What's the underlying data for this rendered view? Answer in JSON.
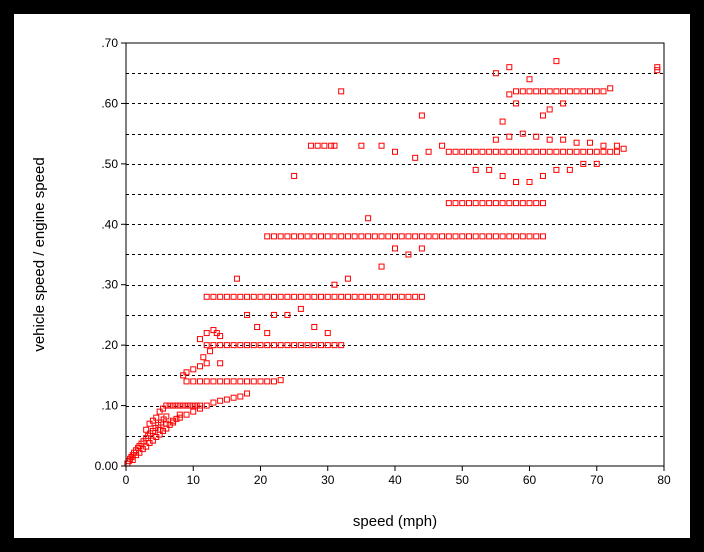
{
  "chart_data": {
    "type": "scatter",
    "title": "",
    "xlabel": "speed (mph)",
    "ylabel": "vehicle speed / engine speed",
    "xlim": [
      0,
      80
    ],
    "ylim": [
      0,
      0.7
    ],
    "x_ticks": [
      0,
      10,
      20,
      30,
      40,
      50,
      60,
      70,
      80
    ],
    "x_tick_labels": [
      "0",
      "10",
      "20",
      "30",
      "40",
      "50",
      "60",
      "70",
      "80"
    ],
    "y_ticks": [
      0,
      0.1,
      0.2,
      0.3,
      0.4,
      0.5,
      0.6,
      0.7
    ],
    "y_tick_labels": [
      "0.00",
      ".10",
      ".20",
      ".30",
      ".40",
      ".50",
      ".60",
      ".70"
    ],
    "grid": "horizontal dashed lines every 0.05",
    "legend": "none",
    "marker": "hollow square",
    "marker_color": "#ff0000",
    "series": [
      {
        "x": [
          0.2,
          0.4,
          0.6,
          0.8,
          1.0,
          1.2,
          1.5,
          1.8,
          2.0,
          2.3,
          2.6,
          3.0,
          3.3,
          3.6,
          4.0,
          4.4,
          4.8,
          5.2,
          5.6,
          6.0,
          1.0,
          1.5,
          2.0,
          2.5,
          3.0,
          3.5,
          4.0,
          4.5,
          5.0,
          5.5,
          6.0,
          6.5,
          7.0,
          7.5,
          8.0,
          3.0,
          3.5,
          4.0,
          4.5,
          5.0,
          5.5,
          6.0,
          6.5,
          7.0,
          7.5,
          8.0,
          8.5,
          9.0,
          9.5,
          10.0,
          10.5,
          11.0,
          5.0,
          6.0,
          7.0,
          8.0,
          9.0,
          10.0,
          11.0,
          12.0,
          13.0,
          14.0,
          15.0,
          16.0,
          17.0,
          18.0,
          9.0,
          10.0,
          11.0,
          12.0,
          13.0,
          14.0,
          15.0,
          16.0,
          17.0,
          18.0,
          19.0,
          20.0,
          21.0,
          22.0,
          23.0,
          8.5,
          9.0,
          10.0,
          11.0,
          12.0,
          14.0,
          12.0,
          13.0,
          14.0,
          15.0,
          16.0,
          17.0,
          18.0,
          19.0,
          20.0,
          21.0,
          22.0,
          23.0,
          24.0,
          25.0,
          26.0,
          27.0,
          28.0,
          29.0,
          30.0,
          31.0,
          32.0,
          11.0,
          12.0,
          13.0,
          14.0,
          12.0,
          13.0,
          14.0,
          15.0,
          16.0,
          17.0,
          18.0,
          19.0,
          20.0,
          21.0,
          22.0,
          23.0,
          24.0,
          25.0,
          26.0,
          27.0,
          28.0,
          29.0,
          30.0,
          31.0,
          32.0,
          33.0,
          34.0,
          35.0,
          36.0,
          37.0,
          38.0,
          39.0,
          40.0,
          41.0,
          42.0,
          43.0,
          44.0,
          21.0,
          22.0,
          23.0,
          24.0,
          25.0,
          26.0,
          27.0,
          28.0,
          29.0,
          30.0,
          31.0,
          32.0,
          33.0,
          34.0,
          35.0,
          36.0,
          37.0,
          38.0,
          39.0,
          40.0,
          41.0,
          42.0,
          43.0,
          44.0,
          45.0,
          46.0,
          47.0,
          48.0,
          49.0,
          50.0,
          51.0,
          52.0,
          53.0,
          54.0,
          55.0,
          56.0,
          57.0,
          58.0,
          59.0,
          60.0,
          61.0,
          62.0,
          48.0,
          49.0,
          50.0,
          51.0,
          52.0,
          53.0,
          54.0,
          55.0,
          56.0,
          57.0,
          58.0,
          59.0,
          60.0,
          61.0,
          62.0,
          48.0,
          49.0,
          50.0,
          51.0,
          52.0,
          53.0,
          54.0,
          55.0,
          56.0,
          57.0,
          58.0,
          59.0,
          60.0,
          61.0,
          62.0,
          63.0,
          64.0,
          65.0,
          66.0,
          67.0,
          68.0,
          69.0,
          70.0,
          71.0,
          72.0,
          73.0,
          74.0,
          52.0,
          54.0,
          56.0,
          58.0,
          60.0,
          62.0,
          64.0,
          66.0,
          68.0,
          70.0,
          55.0,
          57.0,
          59.0,
          61.0,
          63.0,
          65.0,
          67.0,
          69.0,
          71.0,
          73.0,
          57.0,
          58.0,
          59.0,
          60.0,
          61.0,
          62.0,
          63.0,
          64.0,
          65.0,
          66.0,
          67.0,
          68.0,
          69.0,
          70.0,
          71.0,
          72.0,
          27.5,
          28.5,
          29.5,
          30.5,
          31.0,
          11.5,
          12.5,
          13.5,
          16.5,
          18.0,
          19.5,
          21.0,
          22.0,
          24.0,
          26.0,
          28.0,
          30.0,
          31.0,
          33.0,
          36.0,
          38.0,
          40.0,
          42.0,
          44.0,
          25.0,
          32.0,
          35.0,
          38.0,
          40.0,
          43.0,
          45.0,
          47.0,
          44.0,
          55.0,
          60.0,
          58.0,
          64.0,
          56.0,
          57.0,
          79.0,
          79.0,
          62.0,
          63.0,
          65.0
        ],
        "y": [
          0.004,
          0.008,
          0.012,
          0.015,
          0.018,
          0.022,
          0.026,
          0.03,
          0.033,
          0.037,
          0.041,
          0.046,
          0.05,
          0.054,
          0.058,
          0.063,
          0.068,
          0.072,
          0.077,
          0.082,
          0.01,
          0.018,
          0.022,
          0.028,
          0.032,
          0.038,
          0.042,
          0.048,
          0.052,
          0.058,
          0.062,
          0.068,
          0.072,
          0.078,
          0.085,
          0.06,
          0.07,
          0.075,
          0.08,
          0.09,
          0.095,
          0.1,
          0.1,
          0.1,
          0.1,
          0.1,
          0.1,
          0.1,
          0.1,
          0.1,
          0.1,
          0.1,
          0.06,
          0.07,
          0.075,
          0.08,
          0.085,
          0.09,
          0.095,
          0.1,
          0.105,
          0.108,
          0.11,
          0.113,
          0.115,
          0.12,
          0.14,
          0.14,
          0.14,
          0.14,
          0.14,
          0.14,
          0.14,
          0.14,
          0.14,
          0.14,
          0.14,
          0.14,
          0.14,
          0.14,
          0.142,
          0.15,
          0.155,
          0.16,
          0.165,
          0.17,
          0.17,
          0.2,
          0.2,
          0.2,
          0.2,
          0.2,
          0.2,
          0.2,
          0.2,
          0.2,
          0.2,
          0.2,
          0.2,
          0.2,
          0.2,
          0.2,
          0.2,
          0.2,
          0.2,
          0.2,
          0.2,
          0.2,
          0.21,
          0.22,
          0.225,
          0.215,
          0.28,
          0.28,
          0.28,
          0.28,
          0.28,
          0.28,
          0.28,
          0.28,
          0.28,
          0.28,
          0.28,
          0.28,
          0.28,
          0.28,
          0.28,
          0.28,
          0.28,
          0.28,
          0.28,
          0.28,
          0.28,
          0.28,
          0.28,
          0.28,
          0.28,
          0.28,
          0.28,
          0.28,
          0.28,
          0.28,
          0.28,
          0.28,
          0.28,
          0.38,
          0.38,
          0.38,
          0.38,
          0.38,
          0.38,
          0.38,
          0.38,
          0.38,
          0.38,
          0.38,
          0.38,
          0.38,
          0.38,
          0.38,
          0.38,
          0.38,
          0.38,
          0.38,
          0.38,
          0.38,
          0.38,
          0.38,
          0.38,
          0.38,
          0.38,
          0.38,
          0.38,
          0.38,
          0.38,
          0.38,
          0.38,
          0.38,
          0.38,
          0.38,
          0.38,
          0.38,
          0.38,
          0.38,
          0.38,
          0.38,
          0.38,
          0.435,
          0.435,
          0.435,
          0.435,
          0.435,
          0.435,
          0.435,
          0.435,
          0.435,
          0.435,
          0.435,
          0.435,
          0.435,
          0.435,
          0.435,
          0.52,
          0.52,
          0.52,
          0.52,
          0.52,
          0.52,
          0.52,
          0.52,
          0.52,
          0.52,
          0.52,
          0.52,
          0.52,
          0.52,
          0.52,
          0.52,
          0.52,
          0.52,
          0.52,
          0.52,
          0.52,
          0.52,
          0.52,
          0.52,
          0.52,
          0.52,
          0.525,
          0.49,
          0.49,
          0.48,
          0.47,
          0.47,
          0.48,
          0.49,
          0.49,
          0.5,
          0.5,
          0.54,
          0.545,
          0.55,
          0.545,
          0.54,
          0.54,
          0.535,
          0.535,
          0.53,
          0.53,
          0.615,
          0.62,
          0.62,
          0.62,
          0.62,
          0.62,
          0.62,
          0.62,
          0.62,
          0.62,
          0.62,
          0.62,
          0.62,
          0.62,
          0.62,
          0.625,
          0.53,
          0.53,
          0.53,
          0.53,
          0.53,
          0.18,
          0.19,
          0.22,
          0.31,
          0.25,
          0.23,
          0.22,
          0.25,
          0.25,
          0.26,
          0.23,
          0.22,
          0.3,
          0.31,
          0.41,
          0.33,
          0.36,
          0.35,
          0.36,
          0.48,
          0.62,
          0.53,
          0.53,
          0.52,
          0.51,
          0.52,
          0.53,
          0.58,
          0.65,
          0.64,
          0.6,
          0.67,
          0.57,
          0.66,
          0.66,
          0.655,
          0.58,
          0.59,
          0.6
        ]
      }
    ]
  }
}
